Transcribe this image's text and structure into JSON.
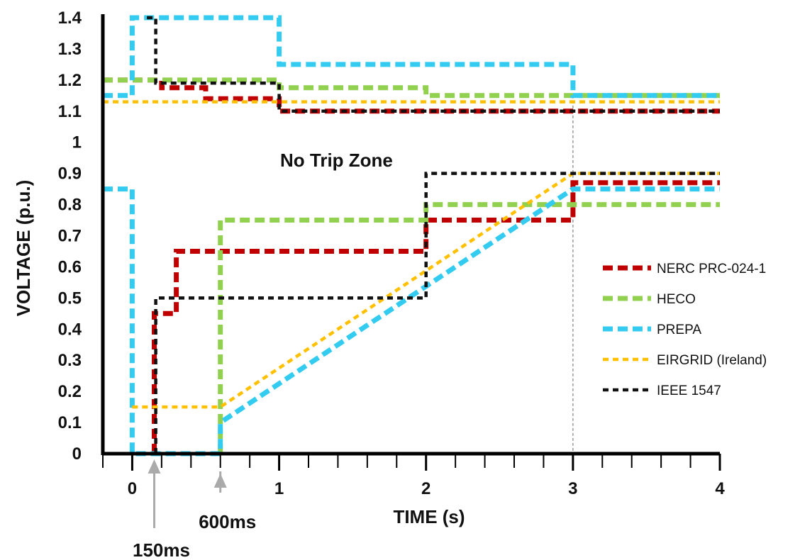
{
  "chart_data": {
    "type": "line",
    "title": "",
    "xlabel": "TIME (s)",
    "ylabel": "VOLTAGE (p.u.)",
    "xlim": [
      -0.2,
      4
    ],
    "ylim": [
      0,
      1.4
    ],
    "x_ticks": [
      0,
      1,
      2,
      3,
      4
    ],
    "x_tick_labels": [
      "0",
      "1",
      "2",
      "3",
      "4"
    ],
    "y_ticks": [
      0,
      0.1,
      0.2,
      0.3,
      0.4,
      0.5,
      0.6,
      0.7,
      0.8,
      0.9,
      1,
      1.1,
      1.2,
      1.3,
      1.4
    ],
    "y_tick_labels": [
      "0",
      "0.1",
      "0.2",
      "0.3",
      "0.4",
      "0.5",
      "0.6",
      "0.7",
      "0.8",
      "0.9",
      "1",
      "1.1",
      "1.2",
      "1.3",
      "1.4"
    ],
    "grid": false,
    "legend_position": "right",
    "reference_line_x": 3,
    "zone_label": "No Trip Zone",
    "annotations": [
      {
        "text": "150ms",
        "x": 0.15,
        "color": "#c00000"
      },
      {
        "text": "600ms",
        "x": 0.6,
        "color": "#111111"
      }
    ],
    "series": [
      {
        "name": "NERC PRC-024-1",
        "color": "#c00000",
        "style": "bold-dash",
        "segments": [
          [
            [
              -0.2,
              1.2
            ],
            [
              0.2,
              1.2
            ],
            [
              0.2,
              1.175
            ],
            [
              0.5,
              1.175
            ],
            [
              0.5,
              1.14
            ],
            [
              1.0,
              1.14
            ],
            [
              1.0,
              1.1
            ],
            [
              4.0,
              1.1
            ]
          ],
          [
            [
              0.15,
              0
            ],
            [
              0.15,
              0.45
            ],
            [
              0.3,
              0.45
            ],
            [
              0.3,
              0.65
            ],
            [
              2.0,
              0.65
            ],
            [
              2.0,
              0.75
            ],
            [
              3.0,
              0.75
            ],
            [
              3.0,
              0.87
            ],
            [
              4.0,
              0.87
            ]
          ]
        ]
      },
      {
        "name": "HECO",
        "color": "#92d050",
        "style": "bold-dash",
        "segments": [
          [
            [
              -0.2,
              1.2
            ],
            [
              1.0,
              1.2
            ],
            [
              1.0,
              1.175
            ],
            [
              2.0,
              1.175
            ],
            [
              2.0,
              1.15
            ],
            [
              4.0,
              1.15
            ]
          ],
          [
            [
              0.6,
              0
            ],
            [
              0.6,
              0.75
            ],
            [
              2.0,
              0.75
            ],
            [
              2.0,
              0.8
            ],
            [
              4.0,
              0.8
            ]
          ]
        ]
      },
      {
        "name": "PREPA",
        "color": "#33ccf0",
        "style": "bold-dash",
        "segments": [
          [
            [
              -0.2,
              1.15
            ],
            [
              0.0,
              1.15
            ],
            [
              0.0,
              1.4
            ],
            [
              1.0,
              1.4
            ],
            [
              1.0,
              1.25
            ],
            [
              3.0,
              1.25
            ],
            [
              3.0,
              1.15
            ],
            [
              4.0,
              1.15
            ]
          ],
          [
            [
              -0.2,
              0.85
            ],
            [
              0.0,
              0.85
            ],
            [
              0.0,
              0
            ],
            [
              0.6,
              0
            ],
            [
              0.6,
              0.1
            ],
            [
              3.0,
              0.85
            ],
            [
              4.0,
              0.85
            ]
          ]
        ]
      },
      {
        "name": "EIRGRID (Ireland)",
        "color": "#ffc000",
        "style": "dash",
        "segments": [
          [
            [
              -0.2,
              1.13
            ],
            [
              4.0,
              1.13
            ]
          ],
          [
            [
              0.0,
              0.15
            ],
            [
              0.6,
              0.15
            ],
            [
              3.0,
              0.9
            ],
            [
              4.0,
              0.9
            ]
          ]
        ]
      },
      {
        "name": "IEEE 1547",
        "color": "#111111",
        "style": "dash",
        "segments": [
          [
            [
              0.1,
              1.4
            ],
            [
              0.16,
              1.4
            ],
            [
              0.16,
              1.19
            ],
            [
              1.0,
              1.19
            ],
            [
              1.0,
              1.1
            ],
            [
              4.0,
              1.1
            ]
          ],
          [
            [
              0.16,
              0
            ],
            [
              0.16,
              0.5
            ],
            [
              2.0,
              0.5
            ],
            [
              2.0,
              0.9
            ],
            [
              4.0,
              0.9
            ]
          ]
        ]
      }
    ]
  }
}
